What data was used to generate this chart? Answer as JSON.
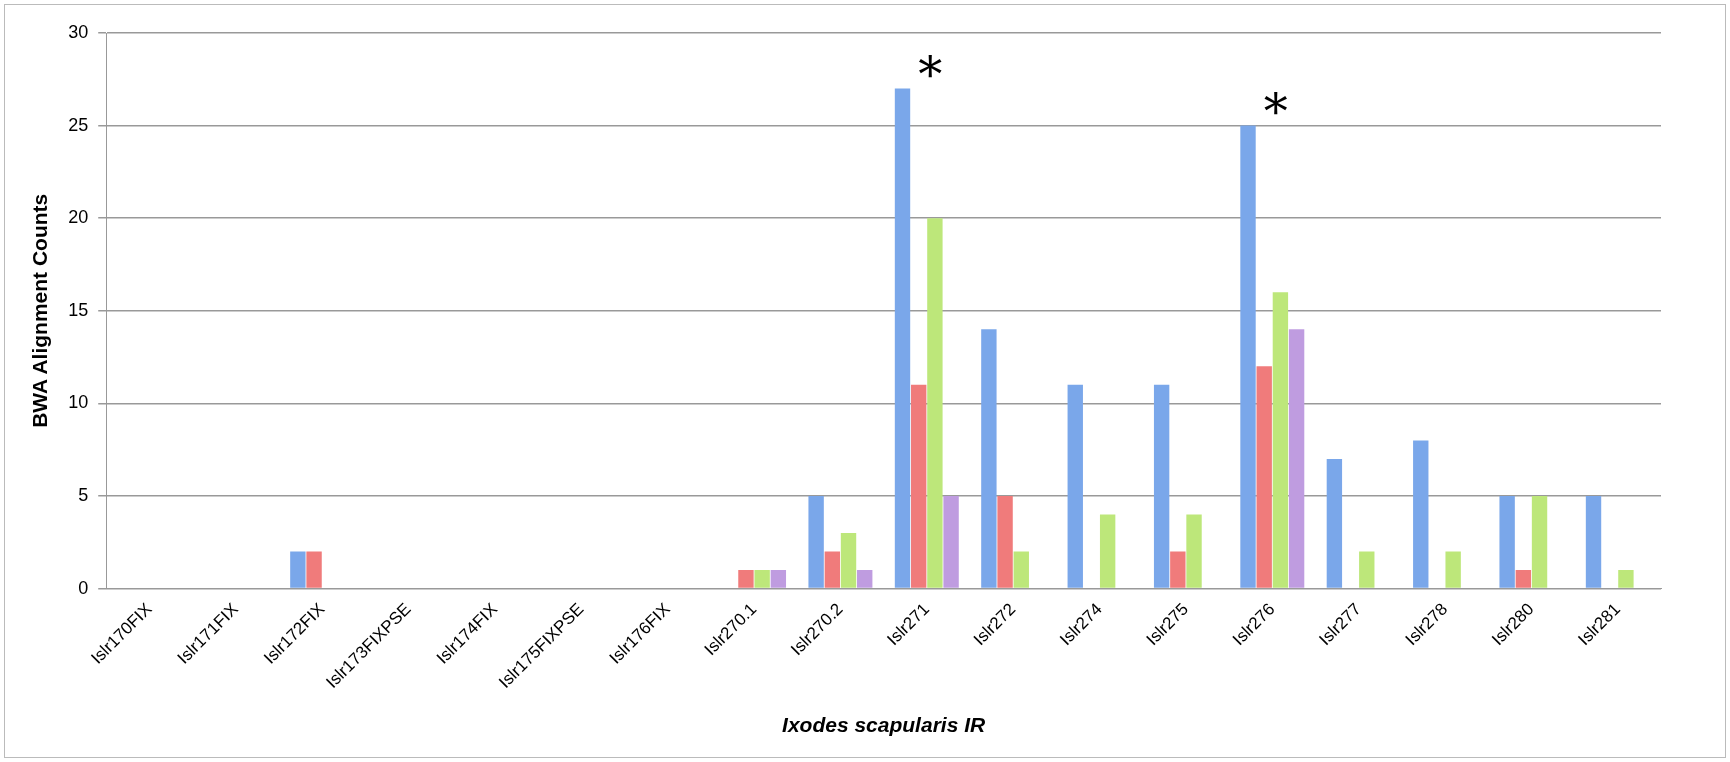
{
  "chart_data": {
    "type": "bar",
    "xlabel": "Ixodes scapularis IR",
    "ylabel": "BWA Alignment Counts",
    "categories": [
      "Islr170FIX",
      "Islr171FIX",
      "Islr172FIX",
      "Islr173FIXPSE",
      "Islr174FIX",
      "Islr175FIXPSE",
      "Islr176FIX",
      "Islr270.1",
      "Islr270.2",
      "Islr271",
      "Islr272",
      "Islr274",
      "Islr275",
      "Islr276",
      "Islr277",
      "Islr278",
      "Islr280",
      "Islr281"
    ],
    "series": [
      {
        "color": "#7aa7ea",
        "values": [
          0,
          0,
          2,
          0,
          0,
          0,
          0,
          0,
          5,
          27,
          14,
          11,
          11,
          25,
          7,
          8,
          5,
          5
        ]
      },
      {
        "color": "#f07b7b",
        "values": [
          0,
          0,
          2,
          0,
          0,
          0,
          0,
          1,
          2,
          11,
          5,
          0,
          2,
          12,
          0,
          0,
          1,
          0
        ]
      },
      {
        "color": "#bde77a",
        "values": [
          0,
          0,
          0,
          0,
          0,
          0,
          0,
          1,
          3,
          20,
          2,
          4,
          4,
          16,
          2,
          2,
          5,
          1
        ]
      },
      {
        "color": "#bf9ce0",
        "values": [
          0,
          0,
          0,
          0,
          0,
          0,
          0,
          1,
          1,
          5,
          0,
          0,
          0,
          14,
          0,
          0,
          0,
          0
        ]
      }
    ],
    "ylim": [
      0,
      30
    ],
    "yticks": [
      0,
      5,
      10,
      15,
      20,
      25,
      30
    ],
    "grid": "y",
    "legend": false,
    "annotations": [
      "*",
      "*"
    ]
  }
}
